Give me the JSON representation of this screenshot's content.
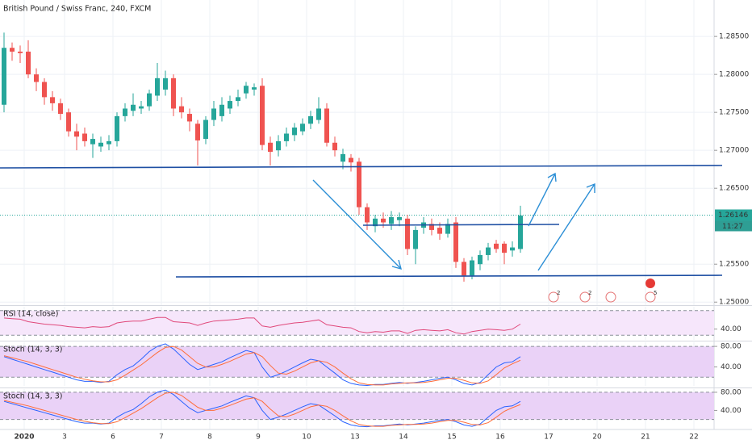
{
  "chart_data": [
    {
      "type": "candlestick",
      "title": "British Pound / Swiss Franc, 240, FXCM",
      "x": [
        -2.5,
        -1.5,
        -0.5,
        0.5,
        1.5,
        2.5,
        3.5,
        4.5,
        5.5,
        6.5,
        7.5,
        8.5,
        9.5,
        10.5,
        11.5,
        12.5,
        13.5,
        14.5,
        15.5,
        16.5,
        17.5,
        18.5,
        19.5,
        20.5,
        21.5,
        22.5,
        23.5,
        24.5,
        25.5,
        26.5,
        27.5,
        28.5,
        29.5,
        30.5,
        31.5,
        32.5,
        33.5,
        34.5,
        35.5,
        36.5,
        37.5,
        38.5,
        39.5,
        40.5,
        41.5,
        42.5,
        43.5,
        44.5,
        45.5,
        46.5,
        47.5,
        48.5,
        49.5,
        50.5,
        51.5,
        52.5,
        53.5,
        54.5,
        55.5,
        56.5,
        57.5,
        58.5,
        59.5,
        60.5,
        61.5
      ],
      "open": [
        1.276,
        1.2835,
        1.283,
        1.283,
        1.28,
        1.279,
        1.277,
        1.2762,
        1.275,
        1.2725,
        1.2722,
        1.2708,
        1.2705,
        1.2708,
        1.2712,
        1.2745,
        1.2752,
        1.2755,
        1.2758,
        1.2772,
        1.278,
        1.2795,
        1.2758,
        1.2748,
        1.2735,
        1.2715,
        1.274,
        1.2745,
        1.2755,
        1.2765,
        1.2775,
        1.278,
        1.2785,
        1.271,
        1.27,
        1.2712,
        1.272,
        1.2725,
        1.2735,
        1.274,
        1.2755,
        1.271,
        1.2685,
        1.269,
        1.2685,
        1.2625,
        1.26,
        1.261,
        1.2603,
        1.2608,
        1.261,
        1.257,
        1.2598,
        1.2603,
        1.2598,
        1.259,
        1.2605,
        1.2553,
        1.2535,
        1.255,
        1.2562,
        1.2577,
        1.2577,
        1.2568,
        1.257
      ],
      "high": [
        1.2855,
        1.2842,
        1.2838,
        1.2845,
        1.2808,
        1.2795,
        1.2778,
        1.2768,
        1.2755,
        1.2735,
        1.273,
        1.2722,
        1.2718,
        1.272,
        1.275,
        1.2762,
        1.2775,
        1.2765,
        1.278,
        1.2815,
        1.2805,
        1.28,
        1.277,
        1.2755,
        1.274,
        1.2745,
        1.2765,
        1.277,
        1.2772,
        1.278,
        1.279,
        1.2788,
        1.2795,
        1.2718,
        1.272,
        1.273,
        1.2736,
        1.2742,
        1.2752,
        1.277,
        1.2762,
        1.2718,
        1.2702,
        1.2695,
        1.269,
        1.263,
        1.2615,
        1.2618,
        1.262,
        1.2618,
        1.2615,
        1.26,
        1.2612,
        1.261,
        1.2605,
        1.261,
        1.2612,
        1.2558,
        1.256,
        1.2568,
        1.2578,
        1.2582,
        1.258,
        1.258,
        1.2627
      ],
      "low": [
        1.275,
        1.2818,
        1.2815,
        1.2795,
        1.2778,
        1.276,
        1.2752,
        1.274,
        1.2718,
        1.27,
        1.2705,
        1.269,
        1.2698,
        1.27,
        1.2705,
        1.2738,
        1.2745,
        1.2748,
        1.2752,
        1.2765,
        1.2772,
        1.2745,
        1.2742,
        1.2725,
        1.268,
        1.2708,
        1.2732,
        1.2738,
        1.2748,
        1.2758,
        1.2768,
        1.2772,
        1.27,
        1.268,
        1.2692,
        1.2705,
        1.2712,
        1.272,
        1.2728,
        1.2735,
        1.2705,
        1.2692,
        1.2675,
        1.2672,
        1.2615,
        1.2595,
        1.2592,
        1.2598,
        1.2595,
        1.26,
        1.2562,
        1.255,
        1.259,
        1.2588,
        1.2582,
        1.2585,
        1.2545,
        1.2527,
        1.253,
        1.2542,
        1.2555,
        1.2565,
        1.255,
        1.256,
        1.2565
      ],
      "close": [
        1.2835,
        1.283,
        1.2828,
        1.28,
        1.279,
        1.277,
        1.2762,
        1.2748,
        1.2725,
        1.2718,
        1.2712,
        1.2715,
        1.271,
        1.2712,
        1.2745,
        1.2755,
        1.276,
        1.2758,
        1.2775,
        1.2795,
        1.2795,
        1.2755,
        1.275,
        1.2738,
        1.2713,
        1.274,
        1.2755,
        1.276,
        1.2765,
        1.277,
        1.2785,
        1.2783,
        1.2707,
        1.2698,
        1.2712,
        1.2722,
        1.273,
        1.2735,
        1.2745,
        1.2755,
        1.271,
        1.27,
        1.2695,
        1.2684,
        1.2625,
        1.2605,
        1.261,
        1.2605,
        1.2612,
        1.2612,
        1.257,
        1.2595,
        1.2605,
        1.2595,
        1.259,
        1.2603,
        1.2553,
        1.2535,
        1.2555,
        1.2562,
        1.2572,
        1.257,
        1.2565,
        1.2572,
        1.2614
      ],
      "up_color": "#26a69a",
      "down_color": "#ef5350",
      "xlim": [
        -3,
        85.5
      ],
      "ylim": [
        1.2496,
        1.2898
      ],
      "yticks": [
        {
          "value": 1.285,
          "label": "1.28500"
        },
        {
          "value": 1.28,
          "label": "1.28000"
        },
        {
          "value": 1.275,
          "label": "1.27500"
        },
        {
          "value": 1.27,
          "label": "1.27000"
        },
        {
          "value": 1.265,
          "label": "1.26500"
        },
        {
          "value": 1.255,
          "label": "1.25500"
        },
        {
          "value": 1.25,
          "label": "1.25000"
        }
      ],
      "xticks": [
        {
          "value": 0,
          "label": "2020"
        },
        {
          "value": 5,
          "label": "3"
        },
        {
          "value": 11,
          "label": "6"
        },
        {
          "value": 17,
          "label": "7"
        },
        {
          "value": 23,
          "label": "8"
        },
        {
          "value": 29,
          "label": "9"
        },
        {
          "value": 35,
          "label": "10"
        },
        {
          "value": 41,
          "label": "13"
        },
        {
          "value": 47,
          "label": "14"
        },
        {
          "value": 53,
          "label": "15"
        },
        {
          "value": 59,
          "label": "16"
        },
        {
          "value": 65,
          "label": "17"
        },
        {
          "value": 71,
          "label": "20"
        },
        {
          "value": 77,
          "label": "21"
        },
        {
          "value": 83,
          "label": "22"
        }
      ],
      "grid": true,
      "last_price": 1.26146,
      "countdown": "11:27",
      "events": [
        "2",
        "2",
        "5"
      ]
    },
    {
      "type": "line",
      "title": "RSI (14, close)",
      "color": "#e0487a",
      "values": [
        58,
        57,
        56,
        52,
        50,
        48,
        47,
        46,
        44,
        43,
        42,
        44,
        43,
        44,
        50,
        52,
        53,
        53,
        56,
        59,
        59,
        52,
        51,
        50,
        46,
        50,
        53,
        54,
        55,
        56,
        58,
        58,
        45,
        43,
        46,
        48,
        50,
        51,
        53,
        55,
        47,
        45,
        43,
        42,
        36,
        34,
        36,
        35,
        37,
        37,
        33,
        38,
        39,
        38,
        37,
        39,
        34,
        32,
        36,
        38,
        40,
        39,
        38,
        40,
        48
      ],
      "ylim": [
        22.5,
        76.25
      ],
      "yticks": [
        {
          "value": 40,
          "label": "40.00"
        }
      ],
      "band": [
        30,
        70
      ],
      "band_color": "#f6e6fb"
    },
    {
      "type": "line",
      "title": "Stoch (14, 3, 3)",
      "series": [
        {
          "color": "#2962ff",
          "values": [
            60,
            55,
            50,
            45,
            40,
            35,
            30,
            25,
            20,
            15,
            12,
            12,
            10,
            12,
            25,
            35,
            42,
            55,
            70,
            80,
            85,
            75,
            60,
            45,
            35,
            40,
            45,
            50,
            58,
            65,
            72,
            68,
            40,
            20,
            25,
            32,
            40,
            48,
            55,
            52,
            40,
            28,
            15,
            8,
            5,
            4,
            6,
            6,
            8,
            10,
            8,
            10,
            12,
            15,
            18,
            20,
            15,
            8,
            5,
            10,
            25,
            40,
            48,
            50,
            60
          ]
        },
        {
          "color": "#ff6d3a",
          "values": [
            62,
            58,
            54,
            50,
            45,
            40,
            35,
            30,
            25,
            20,
            16,
            13,
            11,
            11,
            15,
            24,
            34,
            44,
            56,
            68,
            78,
            80,
            73,
            60,
            47,
            40,
            40,
            45,
            51,
            58,
            65,
            68,
            60,
            43,
            28,
            26,
            32,
            40,
            48,
            52,
            49,
            40,
            28,
            17,
            9,
            6,
            5,
            5,
            7,
            8,
            9,
            9,
            10,
            12,
            15,
            18,
            18,
            14,
            9,
            8,
            13,
            25,
            38,
            46,
            53
          ]
        }
      ],
      "ylim": [
        3.2,
        88
      ],
      "yticks": [
        {
          "value": 80,
          "label": "80.00"
        },
        {
          "value": 40,
          "label": "40.00"
        }
      ],
      "band": [
        20,
        80
      ],
      "band_color": "#ead2f7"
    },
    {
      "type": "line",
      "title": "Stoch (14, 3, 3)",
      "series": [
        {
          "color": "#2962ff",
          "values": [
            60,
            55,
            50,
            45,
            40,
            35,
            30,
            25,
            20,
            15,
            12,
            12,
            10,
            12,
            25,
            35,
            42,
            55,
            70,
            80,
            85,
            75,
            60,
            45,
            35,
            40,
            45,
            50,
            58,
            65,
            72,
            68,
            40,
            20,
            25,
            32,
            40,
            48,
            55,
            52,
            40,
            28,
            15,
            8,
            5,
            4,
            6,
            6,
            8,
            10,
            8,
            10,
            12,
            15,
            18,
            20,
            15,
            8,
            5,
            10,
            25,
            40,
            48,
            50,
            60
          ]
        },
        {
          "color": "#ff6d3a",
          "values": [
            62,
            58,
            54,
            50,
            45,
            40,
            35,
            30,
            25,
            20,
            16,
            13,
            11,
            11,
            15,
            24,
            34,
            44,
            56,
            68,
            78,
            80,
            73,
            60,
            47,
            40,
            40,
            45,
            51,
            58,
            65,
            68,
            60,
            43,
            28,
            26,
            32,
            40,
            48,
            52,
            49,
            40,
            28,
            17,
            9,
            6,
            5,
            5,
            7,
            8,
            9,
            9,
            10,
            12,
            15,
            18,
            18,
            14,
            9,
            8,
            13,
            25,
            38,
            46,
            53
          ]
        }
      ],
      "ylim": [
        -2,
        87
      ],
      "yticks": [
        {
          "value": 80,
          "label": "80.00"
        },
        {
          "value": 40,
          "label": "40.00"
        }
      ],
      "band": [
        20,
        80
      ],
      "band_color": "#ead2f7"
    }
  ]
}
